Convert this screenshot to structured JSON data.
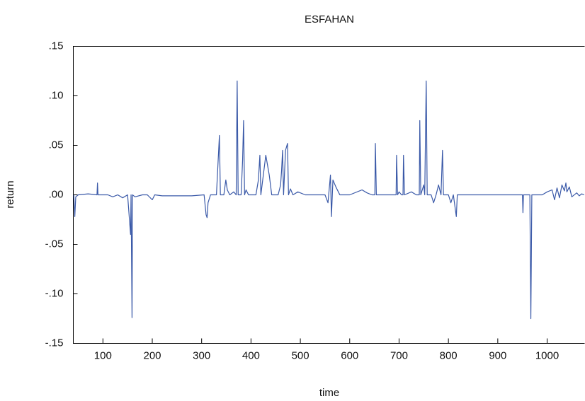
{
  "chart_data": {
    "type": "line",
    "title": "ESFAHAN",
    "x_label": "time",
    "y_label": "return",
    "xlim": [
      40,
      1076
    ],
    "xticks": [
      100,
      200,
      300,
      400,
      500,
      600,
      700,
      800,
      900,
      1000
    ],
    "ylim": [
      -0.15,
      0.15
    ],
    "yticks": [
      {
        "value": -0.15,
        "label": "-.15"
      },
      {
        "value": -0.1,
        "label": "-.10"
      },
      {
        "value": -0.05,
        "label": "-.05"
      },
      {
        "value": 0,
        "label": ".00"
      },
      {
        "value": 0.05,
        "label": ".05"
      },
      {
        "value": 0.1,
        "label": ".10"
      },
      {
        "value": 0.15,
        "label": ".15"
      }
    ],
    "color": "#3a59a8",
    "x": [
      41,
      43,
      45,
      50,
      70,
      88,
      89,
      90,
      110,
      120,
      130,
      140,
      150,
      156,
      157,
      159,
      160,
      165,
      180,
      190,
      200,
      205,
      220,
      250,
      280,
      305,
      309,
      311,
      313,
      318,
      330,
      336,
      338,
      345,
      349,
      352,
      357,
      365,
      370,
      372,
      374,
      380,
      383,
      385,
      387,
      390,
      395,
      410,
      415,
      418,
      420,
      425,
      430,
      437,
      442,
      455,
      460,
      462,
      464,
      466,
      470,
      474,
      476,
      480,
      485,
      495,
      510,
      550,
      556,
      561,
      563,
      566,
      572,
      580,
      600,
      625,
      635,
      645,
      651,
      652,
      654,
      680,
      694,
      695,
      697,
      700,
      705,
      708,
      709,
      711,
      725,
      735,
      741,
      742,
      744,
      750,
      752,
      755,
      757,
      765,
      770,
      775,
      780,
      785,
      788,
      790,
      800,
      805,
      810,
      816,
      818,
      850,
      900,
      950,
      951,
      952,
      965,
      967,
      969,
      990,
      1000,
      1010,
      1015,
      1020,
      1025,
      1030,
      1035,
      1038,
      1040,
      1045,
      1050,
      1060,
      1065,
      1070,
      1075
    ],
    "values": [
      0,
      -0.022,
      -0.002,
      0,
      0.001,
      0,
      0.012,
      0,
      0,
      -0.002,
      0,
      -0.003,
      0,
      -0.04,
      0,
      -0.124,
      0,
      -0.002,
      0,
      0,
      -0.005,
      0,
      -0.001,
      -0.001,
      -0.001,
      0,
      -0.02,
      -0.023,
      -0.008,
      0,
      0,
      0.06,
      0,
      0,
      0.015,
      0.005,
      0,
      0.003,
      0,
      0.115,
      0,
      0,
      0.035,
      0.075,
      0,
      0.005,
      0,
      0,
      0.015,
      0.04,
      0,
      0.02,
      0.04,
      0.02,
      0,
      0,
      0.01,
      0.025,
      0.045,
      0,
      0.045,
      0.052,
      0,
      0.006,
      0,
      0.003,
      0,
      0,
      -0.008,
      0.02,
      -0.022,
      0.015,
      0.008,
      0,
      0,
      0.005,
      0.002,
      0,
      0,
      0.052,
      0,
      0,
      0,
      0.04,
      0,
      0.003,
      0,
      0,
      0.04,
      0,
      0.003,
      0,
      0,
      0.075,
      0,
      0.01,
      0,
      0.115,
      0,
      0,
      -0.008,
      0,
      0.01,
      0,
      0.045,
      0,
      0,
      -0.008,
      0,
      -0.022,
      0,
      0,
      0,
      0,
      -0.018,
      0,
      0,
      -0.125,
      0,
      0,
      0.003,
      0.005,
      -0.005,
      0.007,
      -0.003,
      0.01,
      0.004,
      0.012,
      0.003,
      0.008,
      -0.002,
      0.002,
      -0.001,
      0.001,
      0
    ]
  }
}
